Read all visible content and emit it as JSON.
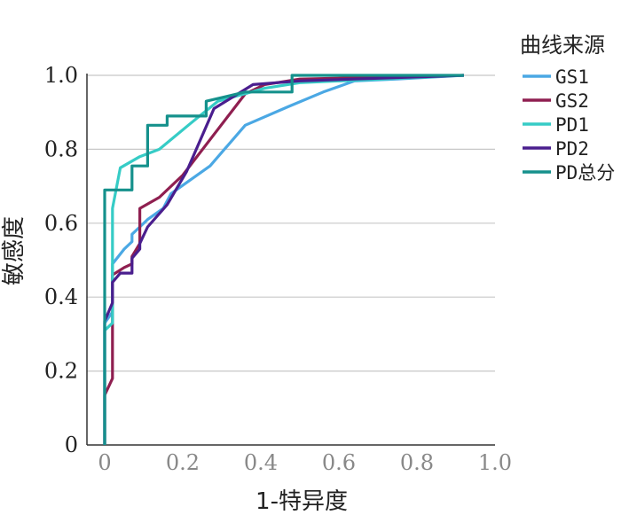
{
  "chart_data": {
    "type": "line",
    "title": "",
    "xlabel": "1-特异度",
    "ylabel": "敏感度",
    "xlim": [
      0,
      1.0
    ],
    "ylim": [
      0,
      1.0
    ],
    "x_ticks": [
      "0",
      "0.2",
      "0.4",
      "0.6",
      "0.8",
      "1.0"
    ],
    "y_ticks": [
      "0",
      "0.2",
      "0.4",
      "0.6",
      "0.8",
      "1.0"
    ],
    "grid": "horizontal",
    "legend": {
      "title": "曲线来源",
      "placement": "right"
    },
    "series": [
      {
        "name": "GS1",
        "color": "#4ba8e4",
        "points": [
          [
            0,
            0
          ],
          [
            0,
            0.33
          ],
          [
            0.02,
            0.36
          ],
          [
            0.02,
            0.49
          ],
          [
            0.05,
            0.53
          ],
          [
            0.07,
            0.55
          ],
          [
            0.07,
            0.57
          ],
          [
            0.09,
            0.59
          ],
          [
            0.11,
            0.61
          ],
          [
            0.15,
            0.64
          ],
          [
            0.17,
            0.68
          ],
          [
            0.27,
            0.755
          ],
          [
            0.36,
            0.865
          ],
          [
            0.47,
            0.915
          ],
          [
            0.56,
            0.955
          ],
          [
            0.64,
            0.985
          ],
          [
            0.75,
            0.99
          ],
          [
            0.92,
            1.0
          ]
        ]
      },
      {
        "name": "GS2",
        "color": "#8f1f50",
        "points": [
          [
            0,
            0
          ],
          [
            0,
            0.135
          ],
          [
            0.02,
            0.18
          ],
          [
            0.02,
            0.46
          ],
          [
            0.05,
            0.48
          ],
          [
            0.07,
            0.49
          ],
          [
            0.07,
            0.51
          ],
          [
            0.09,
            0.545
          ],
          [
            0.09,
            0.64
          ],
          [
            0.14,
            0.67
          ],
          [
            0.2,
            0.73
          ],
          [
            0.28,
            0.84
          ],
          [
            0.36,
            0.95
          ],
          [
            0.41,
            0.975
          ],
          [
            0.5,
            0.99
          ],
          [
            0.92,
            1.0
          ]
        ]
      },
      {
        "name": "PD1",
        "color": "#36ccc6",
        "points": [
          [
            0,
            0
          ],
          [
            0,
            0.31
          ],
          [
            0.02,
            0.33
          ],
          [
            0.02,
            0.64
          ],
          [
            0.04,
            0.75
          ],
          [
            0.09,
            0.78
          ],
          [
            0.14,
            0.8
          ],
          [
            0.22,
            0.87
          ],
          [
            0.29,
            0.93
          ],
          [
            0.41,
            0.965
          ],
          [
            0.5,
            0.98
          ],
          [
            0.92,
            1.0
          ]
        ]
      },
      {
        "name": "PD2",
        "color": "#4a1e8e",
        "points": [
          [
            0,
            0
          ],
          [
            0,
            0.335
          ],
          [
            0.02,
            0.385
          ],
          [
            0.02,
            0.44
          ],
          [
            0.04,
            0.465
          ],
          [
            0.07,
            0.465
          ],
          [
            0.07,
            0.505
          ],
          [
            0.09,
            0.53
          ],
          [
            0.09,
            0.545
          ],
          [
            0.11,
            0.59
          ],
          [
            0.16,
            0.65
          ],
          [
            0.21,
            0.74
          ],
          [
            0.28,
            0.91
          ],
          [
            0.38,
            0.975
          ],
          [
            0.5,
            0.985
          ],
          [
            0.92,
            1.0
          ]
        ]
      },
      {
        "name": "PD总分",
        "color": "#15918c",
        "points": [
          [
            0,
            0
          ],
          [
            0,
            0.69
          ],
          [
            0.07,
            0.69
          ],
          [
            0.07,
            0.755
          ],
          [
            0.11,
            0.755
          ],
          [
            0.11,
            0.865
          ],
          [
            0.16,
            0.865
          ],
          [
            0.16,
            0.89
          ],
          [
            0.26,
            0.89
          ],
          [
            0.26,
            0.93
          ],
          [
            0.36,
            0.955
          ],
          [
            0.48,
            0.955
          ],
          [
            0.48,
            1.0
          ],
          [
            0.92,
            1.0
          ]
        ]
      }
    ]
  }
}
